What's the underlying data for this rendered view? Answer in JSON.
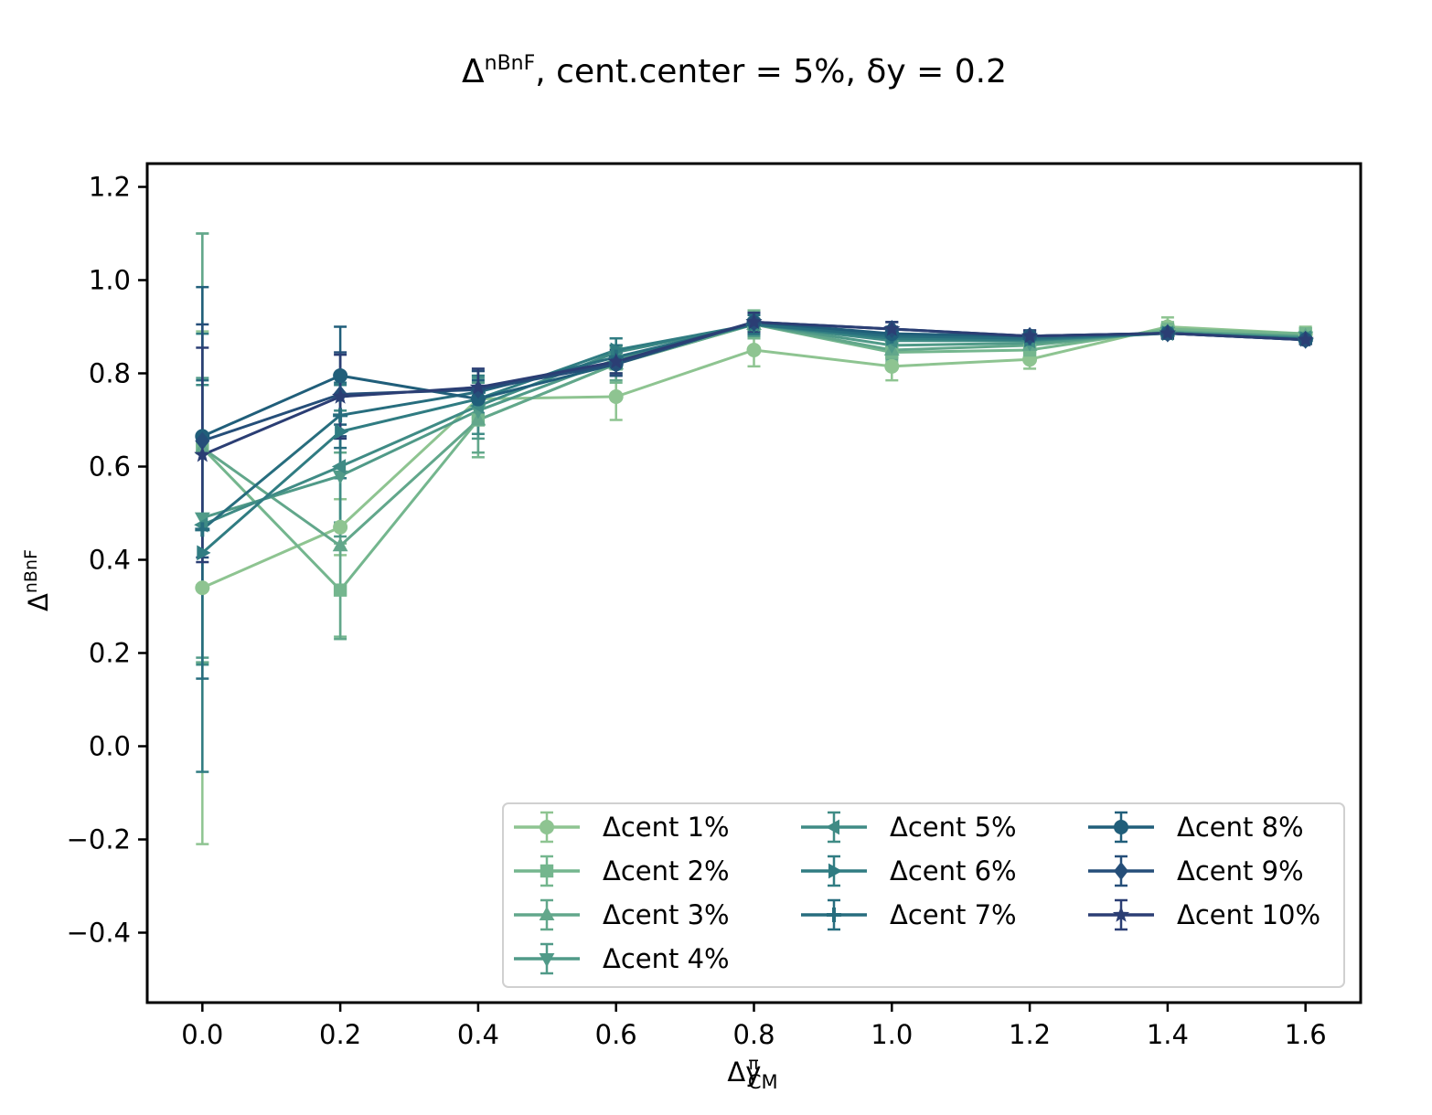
{
  "chart_data": {
    "type": "line",
    "title": {
      "prefix": "Δ",
      "sup": "nBnF",
      "rest": ", cent.center = 5%, δy = 0.2"
    },
    "xlabel": {
      "main": "Δy",
      "sup": "π",
      "sub": "CM"
    },
    "ylabel": {
      "main": "Δ",
      "sup": "nBnF"
    },
    "xlim": [
      -0.08,
      1.68
    ],
    "ylim": [
      -0.55,
      1.25
    ],
    "xticks": [
      0.0,
      0.2,
      0.4,
      0.6,
      0.8,
      1.0,
      1.2,
      1.4,
      1.6
    ],
    "xtick_labels": [
      "0.0",
      "0.2",
      "0.4",
      "0.6",
      "0.8",
      "1.0",
      "1.2",
      "1.4",
      "1.6"
    ],
    "yticks": [
      -0.4,
      -0.2,
      0.0,
      0.2,
      0.4,
      0.6,
      0.8,
      1.0,
      1.2
    ],
    "ytick_labels": [
      "−0.4",
      "−0.2",
      "0.0",
      "0.2",
      "0.4",
      "0.6",
      "0.8",
      "1.0",
      "1.2"
    ],
    "grid": false,
    "legend_position": "lower-right",
    "x": [
      0.0,
      0.2,
      0.4,
      0.6,
      0.8,
      1.0,
      1.2,
      1.4,
      1.6
    ],
    "series": [
      {
        "name": "Δcent 1%",
        "color": "#8ec491",
        "marker": "circle",
        "values": [
          0.34,
          0.47,
          0.745,
          0.75,
          0.85,
          0.815,
          0.83,
          0.9,
          0.885
        ],
        "errors": [
          0.55,
          0.06,
          0.05,
          0.05,
          0.035,
          0.03,
          0.02,
          0.02,
          0.015
        ]
      },
      {
        "name": "Δcent 2%",
        "color": "#74b68e",
        "marker": "square",
        "values": [
          0.64,
          0.335,
          0.7,
          0.82,
          0.905,
          0.845,
          0.85,
          0.895,
          0.885
        ],
        "errors": [
          0.46,
          0.1,
          0.08,
          0.04,
          0.03,
          0.02,
          0.02,
          0.015,
          0.012
        ]
      },
      {
        "name": "Δcent 3%",
        "color": "#62a78b",
        "marker": "triangle-up",
        "values": [
          0.64,
          0.43,
          0.7,
          0.82,
          0.905,
          0.85,
          0.86,
          0.89,
          0.88
        ],
        "errors": [
          0.46,
          0.2,
          0.07,
          0.035,
          0.025,
          0.02,
          0.015,
          0.012,
          0.01
        ]
      },
      {
        "name": "Δcent 4%",
        "color": "#509a88",
        "marker": "triangle-down",
        "values": [
          0.49,
          0.58,
          0.72,
          0.83,
          0.905,
          0.86,
          0.865,
          0.888,
          0.878
        ],
        "errors": [
          0.3,
          0.13,
          0.06,
          0.03,
          0.025,
          0.02,
          0.015,
          0.012,
          0.01
        ]
      },
      {
        "name": "Δcent 5%",
        "color": "#3f8b85",
        "marker": "triangle-left",
        "values": [
          0.475,
          0.6,
          0.73,
          0.845,
          0.905,
          0.87,
          0.87,
          0.886,
          0.876
        ],
        "errors": [
          0.3,
          0.12,
          0.06,
          0.03,
          0.022,
          0.018,
          0.014,
          0.012,
          0.01
        ]
      },
      {
        "name": "Δcent 6%",
        "color": "#307c82",
        "marker": "triangle-right",
        "values": [
          0.415,
          0.675,
          0.745,
          0.85,
          0.905,
          0.875,
          0.872,
          0.886,
          0.874
        ],
        "errors": [
          0.47,
          0.1,
          0.05,
          0.025,
          0.02,
          0.016,
          0.013,
          0.011,
          0.01
        ]
      },
      {
        "name": "Δcent 7%",
        "color": "#276d7e",
        "marker": "plus",
        "values": [
          0.465,
          0.71,
          0.76,
          0.835,
          0.905,
          0.88,
          0.875,
          0.886,
          0.873
        ],
        "errors": [
          0.32,
          0.07,
          0.045,
          0.025,
          0.02,
          0.015,
          0.012,
          0.011,
          0.009
        ]
      },
      {
        "name": "Δcent 8%",
        "color": "#205e7a",
        "marker": "circle",
        "values": [
          0.665,
          0.795,
          0.745,
          0.82,
          0.91,
          0.885,
          0.88,
          0.886,
          0.872
        ],
        "errors": [
          0.32,
          0.105,
          0.04,
          0.025,
          0.02,
          0.015,
          0.012,
          0.011,
          0.009
        ]
      },
      {
        "name": "Δcent 9%",
        "color": "#254e79",
        "marker": "diamond",
        "values": [
          0.655,
          0.755,
          0.765,
          0.82,
          0.91,
          0.895,
          0.88,
          0.886,
          0.872
        ],
        "errors": [
          0.25,
          0.09,
          0.04,
          0.025,
          0.02,
          0.015,
          0.012,
          0.011,
          0.009
        ]
      },
      {
        "name": "Δcent 10%",
        "color": "#2b3e74",
        "marker": "star",
        "values": [
          0.625,
          0.75,
          0.77,
          0.825,
          0.91,
          0.895,
          0.88,
          0.886,
          0.872
        ],
        "errors": [
          0.23,
          0.09,
          0.04,
          0.025,
          0.02,
          0.015,
          0.012,
          0.011,
          0.009
        ]
      }
    ]
  }
}
